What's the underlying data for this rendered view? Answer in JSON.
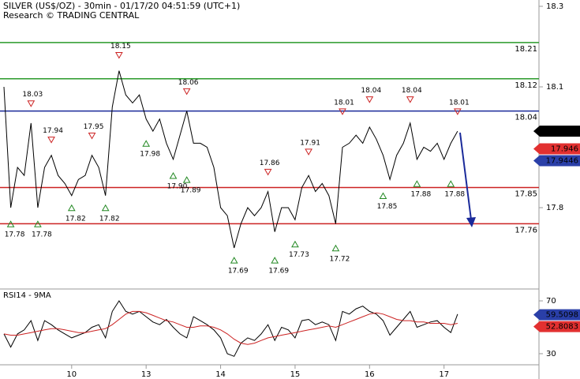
{
  "chart_data": [
    {
      "type": "line",
      "title": "SILVER (US$/OZ) - 30min - 01/17/20 04:51:59 (UTC+1)",
      "subtitle": "Research © TRADING CENTRAL",
      "categories": [
        null,
        null,
        null,
        null,
        null,
        null,
        null,
        null,
        null,
        null,
        "10",
        null,
        null,
        null,
        null,
        null,
        null,
        null,
        null,
        null,
        null,
        "13",
        null,
        null,
        null,
        null,
        null,
        null,
        null,
        null,
        null,
        null,
        "14",
        null,
        null,
        null,
        null,
        null,
        null,
        null,
        null,
        null,
        null,
        "15",
        null,
        null,
        null,
        null,
        null,
        null,
        null,
        null,
        null,
        null,
        "16",
        null,
        null,
        null,
        null,
        null,
        null,
        null,
        null,
        null,
        null,
        "17",
        null,
        null
      ],
      "ylim": [
        17.6,
        18.3
      ],
      "yticks": [
        17.8,
        18.1,
        18.3
      ],
      "series": [
        {
          "color": "#000000",
          "values": [
            18.1,
            17.8,
            17.9,
            17.88,
            18.01,
            17.8,
            17.9,
            17.93,
            17.88,
            17.86,
            17.83,
            17.87,
            17.88,
            17.93,
            17.9,
            17.83,
            18.05,
            18.14,
            18.08,
            18.06,
            18.08,
            18.02,
            17.99,
            18.02,
            17.96,
            17.92,
            17.98,
            18.04,
            17.96,
            17.96,
            17.95,
            17.9,
            17.8,
            17.78,
            17.7,
            17.76,
            17.8,
            17.78,
            17.8,
            17.84,
            17.74,
            17.8,
            17.8,
            17.77,
            17.85,
            17.88,
            17.84,
            17.86,
            17.83,
            17.76,
            17.95,
            17.96,
            17.98,
            17.96,
            18.0,
            17.97,
            17.93,
            17.87,
            17.93,
            17.96,
            18.01,
            17.92,
            17.95,
            17.94,
            17.96,
            17.92,
            17.96,
            17.99
          ]
        },
        {
          "color": "#cc2222",
          "marker": "triangle-down",
          "values": [
            null,
            null,
            null,
            null,
            18.03,
            null,
            null,
            17.94,
            null,
            null,
            null,
            null,
            null,
            17.95,
            null,
            null,
            null,
            18.15,
            null,
            null,
            null,
            null,
            null,
            null,
            null,
            null,
            null,
            18.06,
            null,
            null,
            null,
            null,
            null,
            null,
            null,
            null,
            null,
            null,
            null,
            17.86,
            null,
            null,
            null,
            null,
            null,
            17.91,
            null,
            null,
            null,
            null,
            18.01,
            null,
            null,
            null,
            18.04,
            null,
            null,
            null,
            null,
            null,
            18.04,
            null,
            null,
            null,
            null,
            null,
            null,
            18.01
          ]
        },
        {
          "color": "#228822",
          "marker": "triangle-up",
          "values": [
            null,
            17.78,
            null,
            null,
            null,
            17.78,
            null,
            null,
            null,
            null,
            17.82,
            null,
            null,
            null,
            null,
            17.82,
            null,
            null,
            null,
            null,
            null,
            17.98,
            null,
            null,
            null,
            17.9,
            null,
            17.89,
            null,
            null,
            null,
            null,
            null,
            null,
            17.69,
            null,
            null,
            null,
            null,
            null,
            17.69,
            null,
            null,
            17.73,
            null,
            null,
            null,
            null,
            null,
            17.72,
            null,
            null,
            null,
            null,
            null,
            null,
            17.85,
            null,
            null,
            null,
            null,
            17.88,
            null,
            null,
            null,
            null,
            17.88,
            null
          ],
          "value_labels": [
            null,
            "17.78",
            null,
            null,
            null,
            "17.78",
            null,
            null,
            null,
            null,
            "17.82",
            null,
            null,
            null,
            null,
            "17.82",
            null,
            null,
            null,
            null,
            null,
            "17.98",
            null,
            null,
            null,
            "17.90",
            null,
            "17.89",
            null,
            null,
            null,
            null,
            null,
            null,
            "17.69",
            null,
            null,
            null,
            null,
            null,
            "17.69",
            null,
            null,
            "17.73",
            null,
            null,
            null,
            null,
            null,
            "17.72",
            null,
            null,
            null,
            null,
            null,
            null,
            "17.85",
            null,
            null,
            null,
            null,
            "17.88",
            null,
            null,
            null,
            null,
            "17.88",
            null
          ]
        }
      ],
      "levels": [
        {
          "value": 18.21,
          "color": "#2a9a2a"
        },
        {
          "value": 18.12,
          "color": "#2a9a2a"
        },
        {
          "value": 18.04,
          "color": "#1a2a9a"
        },
        {
          "value": 17.85,
          "color": "#cc2222"
        },
        {
          "value": 17.76,
          "color": "#cc2222"
        }
      ],
      "price_tags": [
        {
          "value": 17.99,
          "color": "#000000"
        },
        {
          "value": 17.946,
          "color": "#e23030"
        },
        {
          "value": 17.9446,
          "color": "#2a3fa8"
        }
      ]
    },
    {
      "type": "line",
      "title": "RSI14 - 9MA",
      "ylim": [
        21.6,
        77.8
      ],
      "yticks": [
        30,
        70
      ],
      "series": [
        {
          "color": "#000000",
          "values": [
            45,
            35,
            45,
            48,
            55,
            40,
            55,
            52,
            48,
            45,
            42,
            44,
            46,
            50,
            52,
            42,
            62,
            70,
            62,
            60,
            62,
            58,
            54,
            52,
            56,
            50,
            45,
            42,
            58,
            55,
            52,
            48,
            42,
            30,
            28,
            38,
            42,
            40,
            45,
            52,
            40,
            50,
            48,
            42,
            55,
            56,
            52,
            54,
            52,
            40,
            62,
            60,
            64,
            66,
            62,
            60,
            55,
            44,
            50,
            56,
            62,
            50,
            52,
            54,
            55,
            50,
            46,
            60
          ]
        },
        {
          "color": "#cc2222",
          "values": [
            45,
            44,
            44,
            45,
            46,
            47,
            48,
            49,
            49,
            48,
            47,
            46,
            46,
            47,
            48,
            49,
            52,
            56,
            60,
            62,
            62,
            61,
            59,
            57,
            55,
            54,
            52,
            50,
            50,
            51,
            51,
            50,
            48,
            45,
            41,
            38,
            37,
            38,
            40,
            42,
            43,
            44,
            45,
            46,
            47,
            48,
            49,
            50,
            51,
            50,
            52,
            54,
            56,
            58,
            60,
            61,
            60,
            58,
            56,
            55,
            55,
            54,
            54,
            53,
            53,
            53,
            52,
            53
          ]
        }
      ],
      "price_tags": [
        {
          "value": 59.5098,
          "color": "#2a3fa8"
        },
        {
          "value": 52.8083,
          "color": "#e23030"
        }
      ]
    }
  ]
}
